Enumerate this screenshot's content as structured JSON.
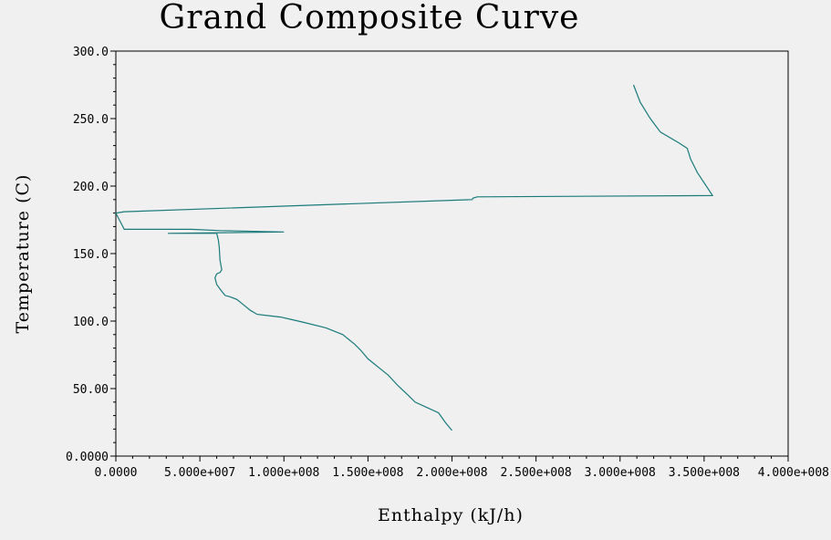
{
  "chart_data": {
    "type": "line",
    "title": "Grand Composite Curve",
    "xlabel": "Enthalpy (kJ/h)",
    "ylabel": "Temperature (C)",
    "xlim": [
      0,
      400000000
    ],
    "ylim": [
      0,
      300
    ],
    "x_ticks": [
      0,
      50000000,
      100000000,
      150000000,
      200000000,
      250000000,
      300000000,
      350000000,
      400000000
    ],
    "x_tick_labels": [
      "0.0000",
      "5.000e+007",
      "1.000e+008",
      "1.500e+008",
      "2.000e+008",
      "2.500e+008",
      "3.000e+008",
      "3.500e+008",
      "4.000e+008"
    ],
    "y_ticks": [
      0,
      50,
      100,
      150,
      200,
      250,
      300
    ],
    "y_tick_labels": [
      "0.0000",
      "50.00",
      "100.0",
      "150.0",
      "200.0",
      "250.0",
      "300.0"
    ],
    "grid": false,
    "line_color": "#1a7a7a",
    "series": [
      {
        "x": [
          200000000,
          196000000,
          192000000,
          185000000,
          178000000,
          174000000,
          168000000,
          162000000,
          157000000,
          150000000,
          146000000,
          142000000,
          135000000,
          125000000,
          112000000,
          105000000,
          98000000,
          91000000,
          84000000,
          80000000,
          76000000,
          72000000,
          68000000,
          65000000,
          63000000,
          60000000,
          59000000,
          60000000,
          62000000,
          63000000,
          62000000,
          61500000,
          61000000,
          60000000,
          31000000,
          100000000,
          62000000,
          45000000,
          5000000,
          0,
          5000000,
          212000000,
          212500000,
          215000000,
          355000000,
          354000000,
          346000000,
          342000000,
          340000000,
          335000000,
          324000000,
          318000000,
          312000000,
          308000000
        ],
        "y": [
          19,
          25,
          32,
          36,
          40,
          45,
          52,
          60,
          65,
          72,
          78,
          83,
          90,
          95,
          99,
          101,
          103,
          104,
          105,
          108,
          112,
          116,
          118,
          119,
          122,
          127,
          132,
          135,
          136,
          138,
          145,
          155,
          160,
          165,
          165,
          166,
          167,
          168,
          168,
          180,
          181,
          190,
          191,
          192,
          193,
          195,
          210,
          220,
          228,
          232,
          240,
          250,
          262,
          275
        ]
      }
    ]
  }
}
